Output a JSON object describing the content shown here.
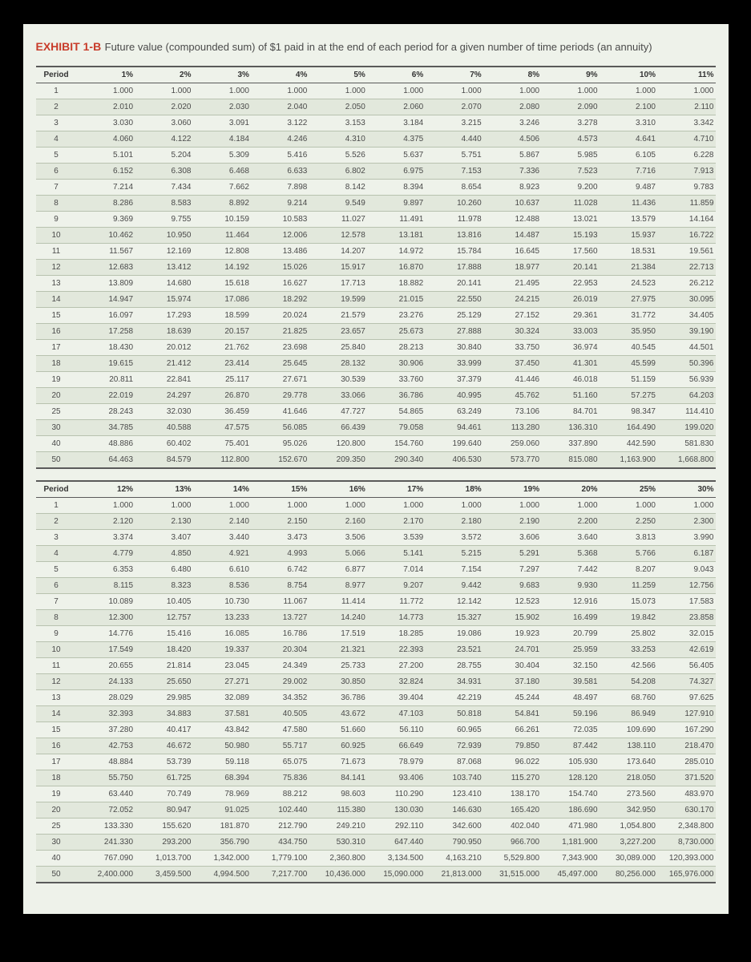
{
  "exhibit": {
    "label": "EXHIBIT 1-B",
    "title": "Future value (compounded sum) of $1 paid in at the end of each period for a given number of time periods (an annuity)"
  },
  "period_header": "Period",
  "table1": {
    "rates": [
      "1%",
      "2%",
      "3%",
      "4%",
      "5%",
      "6%",
      "7%",
      "8%",
      "9%",
      "10%",
      "11%"
    ],
    "rows": [
      {
        "p": "1",
        "v": [
          "1.000",
          "1.000",
          "1.000",
          "1.000",
          "1.000",
          "1.000",
          "1.000",
          "1.000",
          "1.000",
          "1.000",
          "1.000"
        ]
      },
      {
        "p": "2",
        "v": [
          "2.010",
          "2.020",
          "2.030",
          "2.040",
          "2.050",
          "2.060",
          "2.070",
          "2.080",
          "2.090",
          "2.100",
          "2.110"
        ]
      },
      {
        "p": "3",
        "v": [
          "3.030",
          "3.060",
          "3.091",
          "3.122",
          "3.153",
          "3.184",
          "3.215",
          "3.246",
          "3.278",
          "3.310",
          "3.342"
        ]
      },
      {
        "p": "4",
        "v": [
          "4.060",
          "4.122",
          "4.184",
          "4.246",
          "4.310",
          "4.375",
          "4.440",
          "4.506",
          "4.573",
          "4.641",
          "4.710"
        ]
      },
      {
        "p": "5",
        "v": [
          "5.101",
          "5.204",
          "5.309",
          "5.416",
          "5.526",
          "5.637",
          "5.751",
          "5.867",
          "5.985",
          "6.105",
          "6.228"
        ]
      },
      {
        "p": "6",
        "v": [
          "6.152",
          "6.308",
          "6.468",
          "6.633",
          "6.802",
          "6.975",
          "7.153",
          "7.336",
          "7.523",
          "7.716",
          "7.913"
        ]
      },
      {
        "p": "7",
        "v": [
          "7.214",
          "7.434",
          "7.662",
          "7.898",
          "8.142",
          "8.394",
          "8.654",
          "8.923",
          "9.200",
          "9.487",
          "9.783"
        ]
      },
      {
        "p": "8",
        "v": [
          "8.286",
          "8.583",
          "8.892",
          "9.214",
          "9.549",
          "9.897",
          "10.260",
          "10.637",
          "11.028",
          "11.436",
          "11.859"
        ]
      },
      {
        "p": "9",
        "v": [
          "9.369",
          "9.755",
          "10.159",
          "10.583",
          "11.027",
          "11.491",
          "11.978",
          "12.488",
          "13.021",
          "13.579",
          "14.164"
        ]
      },
      {
        "p": "10",
        "v": [
          "10.462",
          "10.950",
          "11.464",
          "12.006",
          "12.578",
          "13.181",
          "13.816",
          "14.487",
          "15.193",
          "15.937",
          "16.722"
        ]
      },
      {
        "p": "11",
        "v": [
          "11.567",
          "12.169",
          "12.808",
          "13.486",
          "14.207",
          "14.972",
          "15.784",
          "16.645",
          "17.560",
          "18.531",
          "19.561"
        ]
      },
      {
        "p": "12",
        "v": [
          "12.683",
          "13.412",
          "14.192",
          "15.026",
          "15.917",
          "16.870",
          "17.888",
          "18.977",
          "20.141",
          "21.384",
          "22.713"
        ]
      },
      {
        "p": "13",
        "v": [
          "13.809",
          "14.680",
          "15.618",
          "16.627",
          "17.713",
          "18.882",
          "20.141",
          "21.495",
          "22.953",
          "24.523",
          "26.212"
        ]
      },
      {
        "p": "14",
        "v": [
          "14.947",
          "15.974",
          "17.086",
          "18.292",
          "19.599",
          "21.015",
          "22.550",
          "24.215",
          "26.019",
          "27.975",
          "30.095"
        ]
      },
      {
        "p": "15",
        "v": [
          "16.097",
          "17.293",
          "18.599",
          "20.024",
          "21.579",
          "23.276",
          "25.129",
          "27.152",
          "29.361",
          "31.772",
          "34.405"
        ]
      },
      {
        "p": "16",
        "v": [
          "17.258",
          "18.639",
          "20.157",
          "21.825",
          "23.657",
          "25.673",
          "27.888",
          "30.324",
          "33.003",
          "35.950",
          "39.190"
        ]
      },
      {
        "p": "17",
        "v": [
          "18.430",
          "20.012",
          "21.762",
          "23.698",
          "25.840",
          "28.213",
          "30.840",
          "33.750",
          "36.974",
          "40.545",
          "44.501"
        ]
      },
      {
        "p": "18",
        "v": [
          "19.615",
          "21.412",
          "23.414",
          "25.645",
          "28.132",
          "30.906",
          "33.999",
          "37.450",
          "41.301",
          "45.599",
          "50.396"
        ]
      },
      {
        "p": "19",
        "v": [
          "20.811",
          "22.841",
          "25.117",
          "27.671",
          "30.539",
          "33.760",
          "37.379",
          "41.446",
          "46.018",
          "51.159",
          "56.939"
        ]
      },
      {
        "p": "20",
        "v": [
          "22.019",
          "24.297",
          "26.870",
          "29.778",
          "33.066",
          "36.786",
          "40.995",
          "45.762",
          "51.160",
          "57.275",
          "64.203"
        ]
      },
      {
        "p": "25",
        "v": [
          "28.243",
          "32.030",
          "36.459",
          "41.646",
          "47.727",
          "54.865",
          "63.249",
          "73.106",
          "84.701",
          "98.347",
          "114.410"
        ]
      },
      {
        "p": "30",
        "v": [
          "34.785",
          "40.588",
          "47.575",
          "56.085",
          "66.439",
          "79.058",
          "94.461",
          "113.280",
          "136.310",
          "164.490",
          "199.020"
        ]
      },
      {
        "p": "40",
        "v": [
          "48.886",
          "60.402",
          "75.401",
          "95.026",
          "120.800",
          "154.760",
          "199.640",
          "259.060",
          "337.890",
          "442.590",
          "581.830"
        ]
      },
      {
        "p": "50",
        "v": [
          "64.463",
          "84.579",
          "112.800",
          "152.670",
          "209.350",
          "290.340",
          "406.530",
          "573.770",
          "815.080",
          "1,163.900",
          "1,668.800"
        ]
      }
    ]
  },
  "table2": {
    "rates": [
      "12%",
      "13%",
      "14%",
      "15%",
      "16%",
      "17%",
      "18%",
      "19%",
      "20%",
      "25%",
      "30%"
    ],
    "rows": [
      {
        "p": "1",
        "v": [
          "1.000",
          "1.000",
          "1.000",
          "1.000",
          "1.000",
          "1.000",
          "1.000",
          "1.000",
          "1.000",
          "1.000",
          "1.000"
        ]
      },
      {
        "p": "2",
        "v": [
          "2.120",
          "2.130",
          "2.140",
          "2.150",
          "2.160",
          "2.170",
          "2.180",
          "2.190",
          "2.200",
          "2.250",
          "2.300"
        ]
      },
      {
        "p": "3",
        "v": [
          "3.374",
          "3.407",
          "3.440",
          "3.473",
          "3.506",
          "3.539",
          "3.572",
          "3.606",
          "3.640",
          "3.813",
          "3.990"
        ]
      },
      {
        "p": "4",
        "v": [
          "4.779",
          "4.850",
          "4.921",
          "4.993",
          "5.066",
          "5.141",
          "5.215",
          "5.291",
          "5.368",
          "5.766",
          "6.187"
        ]
      },
      {
        "p": "5",
        "v": [
          "6.353",
          "6.480",
          "6.610",
          "6.742",
          "6.877",
          "7.014",
          "7.154",
          "7.297",
          "7.442",
          "8.207",
          "9.043"
        ]
      },
      {
        "p": "6",
        "v": [
          "8.115",
          "8.323",
          "8.536",
          "8.754",
          "8.977",
          "9.207",
          "9.442",
          "9.683",
          "9.930",
          "11.259",
          "12.756"
        ]
      },
      {
        "p": "7",
        "v": [
          "10.089",
          "10.405",
          "10.730",
          "11.067",
          "11.414",
          "11.772",
          "12.142",
          "12.523",
          "12.916",
          "15.073",
          "17.583"
        ]
      },
      {
        "p": "8",
        "v": [
          "12.300",
          "12.757",
          "13.233",
          "13.727",
          "14.240",
          "14.773",
          "15.327",
          "15.902",
          "16.499",
          "19.842",
          "23.858"
        ]
      },
      {
        "p": "9",
        "v": [
          "14.776",
          "15.416",
          "16.085",
          "16.786",
          "17.519",
          "18.285",
          "19.086",
          "19.923",
          "20.799",
          "25.802",
          "32.015"
        ]
      },
      {
        "p": "10",
        "v": [
          "17.549",
          "18.420",
          "19.337",
          "20.304",
          "21.321",
          "22.393",
          "23.521",
          "24.701",
          "25.959",
          "33.253",
          "42.619"
        ]
      },
      {
        "p": "11",
        "v": [
          "20.655",
          "21.814",
          "23.045",
          "24.349",
          "25.733",
          "27.200",
          "28.755",
          "30.404",
          "32.150",
          "42.566",
          "56.405"
        ]
      },
      {
        "p": "12",
        "v": [
          "24.133",
          "25.650",
          "27.271",
          "29.002",
          "30.850",
          "32.824",
          "34.931",
          "37.180",
          "39.581",
          "54.208",
          "74.327"
        ]
      },
      {
        "p": "13",
        "v": [
          "28.029",
          "29.985",
          "32.089",
          "34.352",
          "36.786",
          "39.404",
          "42.219",
          "45.244",
          "48.497",
          "68.760",
          "97.625"
        ]
      },
      {
        "p": "14",
        "v": [
          "32.393",
          "34.883",
          "37.581",
          "40.505",
          "43.672",
          "47.103",
          "50.818",
          "54.841",
          "59.196",
          "86.949",
          "127.910"
        ]
      },
      {
        "p": "15",
        "v": [
          "37.280",
          "40.417",
          "43.842",
          "47.580",
          "51.660",
          "56.110",
          "60.965",
          "66.261",
          "72.035",
          "109.690",
          "167.290"
        ]
      },
      {
        "p": "16",
        "v": [
          "42.753",
          "46.672",
          "50.980",
          "55.717",
          "60.925",
          "66.649",
          "72.939",
          "79.850",
          "87.442",
          "138.110",
          "218.470"
        ]
      },
      {
        "p": "17",
        "v": [
          "48.884",
          "53.739",
          "59.118",
          "65.075",
          "71.673",
          "78.979",
          "87.068",
          "96.022",
          "105.930",
          "173.640",
          "285.010"
        ]
      },
      {
        "p": "18",
        "v": [
          "55.750",
          "61.725",
          "68.394",
          "75.836",
          "84.141",
          "93.406",
          "103.740",
          "115.270",
          "128.120",
          "218.050",
          "371.520"
        ]
      },
      {
        "p": "19",
        "v": [
          "63.440",
          "70.749",
          "78.969",
          "88.212",
          "98.603",
          "110.290",
          "123.410",
          "138.170",
          "154.740",
          "273.560",
          "483.970"
        ]
      },
      {
        "p": "20",
        "v": [
          "72.052",
          "80.947",
          "91.025",
          "102.440",
          "115.380",
          "130.030",
          "146.630",
          "165.420",
          "186.690",
          "342.950",
          "630.170"
        ]
      },
      {
        "p": "25",
        "v": [
          "133.330",
          "155.620",
          "181.870",
          "212.790",
          "249.210",
          "292.110",
          "342.600",
          "402.040",
          "471.980",
          "1,054.800",
          "2,348.800"
        ]
      },
      {
        "p": "30",
        "v": [
          "241.330",
          "293.200",
          "356.790",
          "434.750",
          "530.310",
          "647.440",
          "790.950",
          "966.700",
          "1,181.900",
          "3,227.200",
          "8,730.000"
        ]
      },
      {
        "p": "40",
        "v": [
          "767.090",
          "1,013.700",
          "1,342.000",
          "1,779.100",
          "2,360.800",
          "3,134.500",
          "4,163.210",
          "5,529.800",
          "7,343.900",
          "30,089.000",
          "120,393.000"
        ]
      },
      {
        "p": "50",
        "v": [
          "2,400.000",
          "3,459.500",
          "4,994.500",
          "7,217.700",
          "10,436.000",
          "15,090.000",
          "21,813.000",
          "31,515.000",
          "45,497.000",
          "80,256.000",
          "165,976.000"
        ]
      }
    ]
  },
  "style": {
    "page_bg": "#eef2ea",
    "accent": "#c83c2a",
    "text": "#4a4a4a",
    "row_stripe": "#e2e8dc",
    "border": "#b8c2af",
    "header_border": "#5a5a5a"
  }
}
